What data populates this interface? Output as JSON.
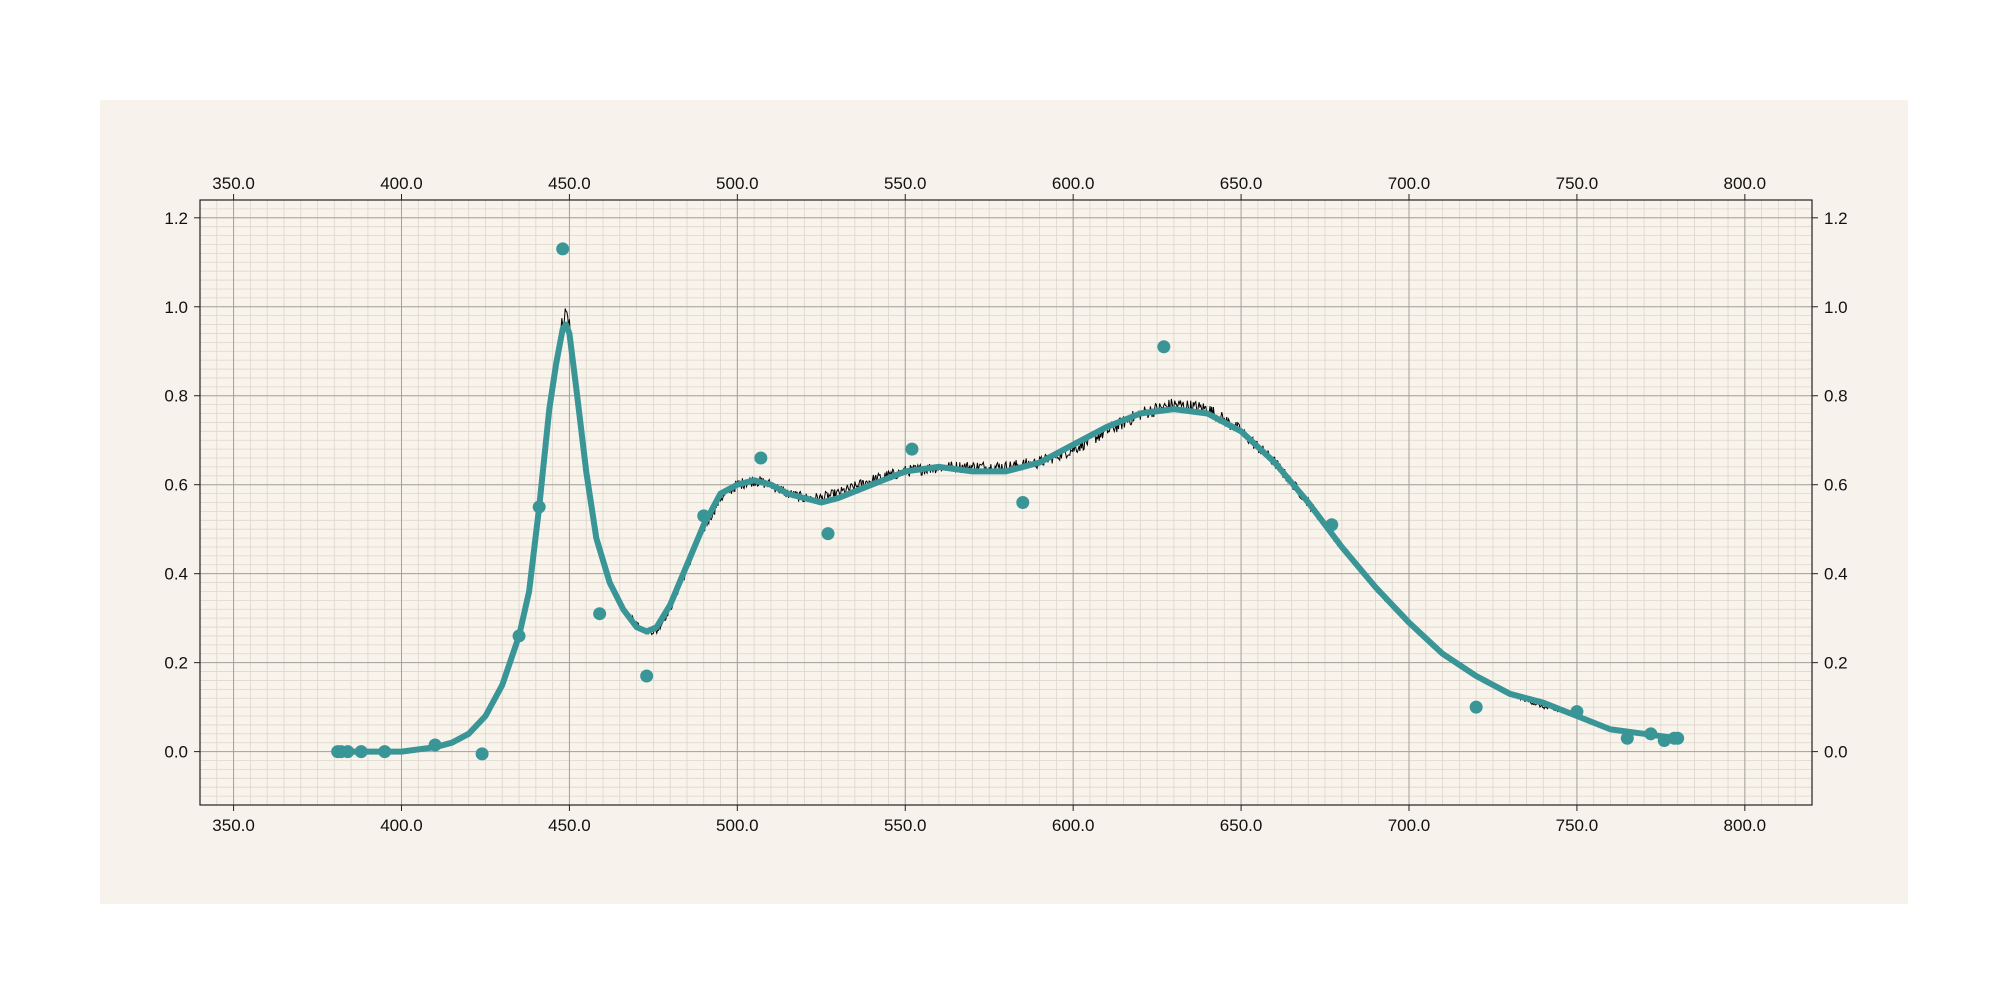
{
  "colors": {
    "panel_background": "#f7f3ec",
    "plot_background": "#f8f3eb",
    "major_grid": "#a3a09b",
    "minor_grid": "#ddd6cc",
    "axis": "#222222",
    "measured_line": "#000000",
    "fit_line": "#3a9597",
    "sample_points": "#3a9597"
  },
  "chart_data": {
    "type": "line",
    "title": "",
    "xlabel": "",
    "ylabel": "",
    "xlim": [
      340,
      820
    ],
    "ylim": [
      -0.12,
      1.24
    ],
    "x_ticks": [
      350,
      400,
      450,
      500,
      550,
      600,
      650,
      700,
      750,
      800
    ],
    "x_tick_labels": [
      "350.0",
      "400.0",
      "450.0",
      "500.0",
      "550.0",
      "600.0",
      "650.0",
      "700.0",
      "750.0",
      "800.0"
    ],
    "y_ticks": [
      0.0,
      0.2,
      0.4,
      0.6,
      0.8,
      1.0,
      1.2
    ],
    "y_tick_labels": [
      "0.0",
      "0.2",
      "0.4",
      "0.6",
      "0.8",
      "1.0",
      "1.2"
    ],
    "x_minor_step": 5,
    "y_minor_step": 0.02,
    "grid": true,
    "axes_labels_on": [
      "top",
      "bottom",
      "left",
      "right"
    ],
    "legend": "none",
    "series": [
      {
        "style": "line-noisy",
        "x": [
          380,
          390,
          400,
          410,
          415,
          420,
          425,
          430,
          435,
          438,
          441,
          444,
          446,
          448,
          449,
          450,
          452,
          455,
          458,
          462,
          466,
          470,
          473,
          476,
          480,
          485,
          490,
          495,
          500,
          505,
          510,
          515,
          520,
          525,
          530,
          540,
          550,
          560,
          570,
          580,
          590,
          600,
          610,
          620,
          630,
          640,
          650,
          660,
          670,
          680,
          690,
          700,
          710,
          720,
          730,
          740,
          750,
          760,
          770,
          780
        ],
        "y": [
          0.0,
          0.0,
          0.0,
          0.01,
          0.02,
          0.04,
          0.08,
          0.15,
          0.26,
          0.35,
          0.55,
          0.78,
          0.88,
          0.97,
          0.99,
          0.96,
          0.82,
          0.62,
          0.48,
          0.38,
          0.32,
          0.29,
          0.27,
          0.27,
          0.32,
          0.41,
          0.5,
          0.57,
          0.6,
          0.61,
          0.6,
          0.58,
          0.57,
          0.57,
          0.58,
          0.61,
          0.63,
          0.64,
          0.64,
          0.64,
          0.65,
          0.68,
          0.72,
          0.76,
          0.78,
          0.77,
          0.72,
          0.65,
          0.56,
          0.46,
          0.37,
          0.29,
          0.22,
          0.17,
          0.13,
          0.1,
          0.08,
          0.05,
          0.04,
          0.03
        ]
      },
      {
        "style": "line-smooth",
        "x": [
          380,
          390,
          400,
          410,
          415,
          420,
          425,
          430,
          435,
          438,
          441,
          444,
          446,
          448,
          449,
          450,
          452,
          455,
          458,
          462,
          466,
          470,
          473,
          476,
          480,
          485,
          490,
          495,
          500,
          505,
          510,
          515,
          520,
          525,
          530,
          540,
          550,
          560,
          570,
          580,
          590,
          600,
          610,
          620,
          630,
          640,
          650,
          660,
          670,
          680,
          690,
          700,
          710,
          720,
          730,
          740,
          750,
          760,
          770,
          780
        ],
        "y": [
          0.0,
          0.0,
          0.0,
          0.01,
          0.02,
          0.04,
          0.08,
          0.15,
          0.26,
          0.36,
          0.55,
          0.77,
          0.87,
          0.95,
          0.96,
          0.94,
          0.82,
          0.63,
          0.48,
          0.38,
          0.32,
          0.28,
          0.27,
          0.28,
          0.33,
          0.42,
          0.51,
          0.58,
          0.6,
          0.61,
          0.6,
          0.58,
          0.57,
          0.56,
          0.57,
          0.6,
          0.63,
          0.64,
          0.63,
          0.63,
          0.65,
          0.69,
          0.73,
          0.76,
          0.77,
          0.76,
          0.72,
          0.65,
          0.56,
          0.46,
          0.37,
          0.29,
          0.22,
          0.17,
          0.13,
          0.11,
          0.08,
          0.05,
          0.04,
          0.03
        ]
      },
      {
        "style": "scatter",
        "x": [
          381,
          382,
          384,
          388,
          395,
          410,
          424,
          435,
          441,
          448,
          459,
          473,
          490,
          507,
          527,
          552,
          585,
          627,
          677,
          720,
          750,
          765,
          772,
          776,
          779,
          780
        ],
        "y": [
          0.0,
          0.0,
          0.0,
          0.0,
          0.0,
          0.015,
          -0.005,
          0.26,
          0.55,
          1.13,
          0.31,
          0.17,
          0.53,
          0.66,
          0.49,
          0.68,
          0.56,
          0.91,
          0.51,
          0.1,
          0.09,
          0.03,
          0.04,
          0.025,
          0.03,
          0.03
        ]
      }
    ]
  }
}
